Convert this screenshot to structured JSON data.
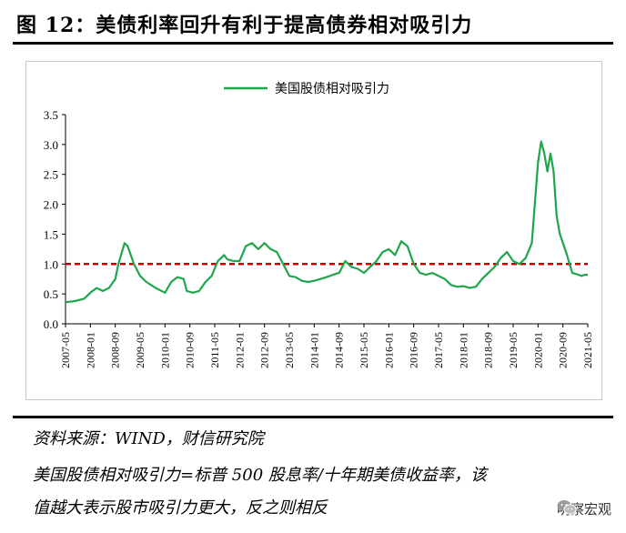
{
  "title": "图 12：美债利率回升有利于提高债券相对吸引力",
  "notes": {
    "source": "资料来源：WIND，财信研究院",
    "definition_line1": "美国股债相对吸引力=标普 500 股息率/十年期美债收益率，该",
    "definition_line2": "值越大表示股市吸引力更大，反之则相反"
  },
  "watermark": {
    "text": "明察宏观",
    "icon": "wechat-icon"
  },
  "colors": {
    "series": "#1fa64b",
    "reference": "#c00000",
    "axis": "#000000"
  },
  "chart_data": {
    "type": "line",
    "legend": {
      "entries": [
        "美国股债相对吸引力"
      ],
      "placement": "top-center"
    },
    "ylim": [
      0,
      3.5
    ],
    "yticks": [
      "0.0",
      "0.5",
      "1.0",
      "1.5",
      "2.0",
      "2.5",
      "3.0",
      "3.5"
    ],
    "xlim": [
      "2007-05",
      "2021-05"
    ],
    "xticks": [
      "2007-05",
      "2008-01",
      "2008-09",
      "2009-05",
      "2010-01",
      "2010-09",
      "2011-05",
      "2012-01",
      "2012-09",
      "2013-05",
      "2014-01",
      "2014-09",
      "2015-05",
      "2016-01",
      "2016-09",
      "2017-05",
      "2018-01",
      "2018-09",
      "2019-05",
      "2020-01",
      "2020-09",
      "2021-05"
    ],
    "reference_line": {
      "y": 1.0,
      "style": "dashed"
    },
    "grid": false,
    "series": [
      {
        "name": "美国股债相对吸引力",
        "x": [
          "2007-05",
          "2007-08",
          "2007-11",
          "2008-01",
          "2008-03",
          "2008-05",
          "2008-07",
          "2008-09",
          "2008-10",
          "2008-12",
          "2009-01",
          "2009-03",
          "2009-05",
          "2009-07",
          "2009-10",
          "2010-01",
          "2010-03",
          "2010-05",
          "2010-07",
          "2010-08",
          "2010-10",
          "2010-12",
          "2011-02",
          "2011-04",
          "2011-06",
          "2011-08",
          "2011-09",
          "2011-11",
          "2012-01",
          "2012-03",
          "2012-05",
          "2012-07",
          "2012-09",
          "2012-11",
          "2013-01",
          "2013-03",
          "2013-05",
          "2013-07",
          "2013-09",
          "2013-11",
          "2014-01",
          "2014-03",
          "2014-05",
          "2014-07",
          "2014-09",
          "2014-11",
          "2015-01",
          "2015-03",
          "2015-05",
          "2015-07",
          "2015-09",
          "2015-11",
          "2016-01",
          "2016-03",
          "2016-05",
          "2016-07",
          "2016-09",
          "2016-11",
          "2017-01",
          "2017-03",
          "2017-05",
          "2017-07",
          "2017-09",
          "2017-11",
          "2018-01",
          "2018-03",
          "2018-05",
          "2018-07",
          "2018-09",
          "2018-11",
          "2019-01",
          "2019-03",
          "2019-05",
          "2019-07",
          "2019-09",
          "2019-11",
          "2020-01",
          "2020-02",
          "2020-03",
          "2020-04",
          "2020-05",
          "2020-06",
          "2020-07",
          "2020-08",
          "2020-10",
          "2020-12",
          "2021-02",
          "2021-03",
          "2021-04",
          "2021-05"
        ],
        "values": [
          0.36,
          0.38,
          0.42,
          0.52,
          0.6,
          0.55,
          0.6,
          0.75,
          1.0,
          1.35,
          1.3,
          1.0,
          0.8,
          0.7,
          0.6,
          0.52,
          0.7,
          0.78,
          0.75,
          0.55,
          0.52,
          0.55,
          0.7,
          0.8,
          1.05,
          1.15,
          1.08,
          1.05,
          1.05,
          1.3,
          1.35,
          1.25,
          1.35,
          1.25,
          1.2,
          1.0,
          0.8,
          0.78,
          0.72,
          0.7,
          0.72,
          0.75,
          0.78,
          0.82,
          0.85,
          1.05,
          0.95,
          0.92,
          0.85,
          0.95,
          1.05,
          1.2,
          1.25,
          1.15,
          1.38,
          1.3,
          1.0,
          0.85,
          0.82,
          0.85,
          0.8,
          0.75,
          0.65,
          0.62,
          0.63,
          0.6,
          0.62,
          0.75,
          0.85,
          0.95,
          1.1,
          1.2,
          1.05,
          1.0,
          1.1,
          1.35,
          2.7,
          3.05,
          2.85,
          2.55,
          2.85,
          2.55,
          1.8,
          1.5,
          1.2,
          0.85,
          0.82,
          0.8,
          0.82,
          0.82
        ]
      }
    ]
  }
}
